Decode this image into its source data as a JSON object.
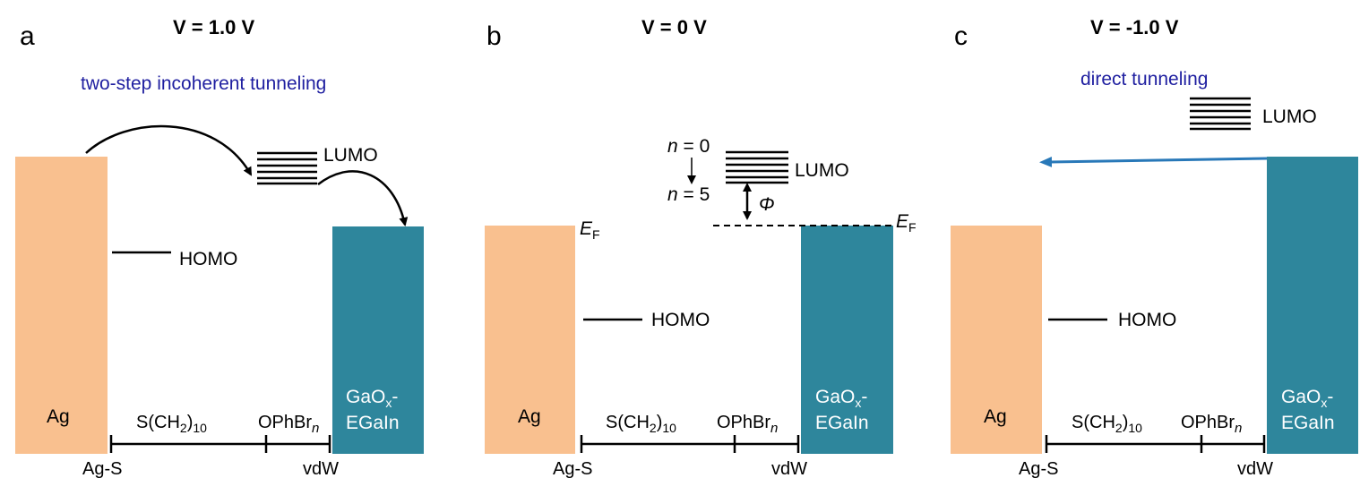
{
  "panels": [
    {
      "letter": "a",
      "voltage": "V = 1.0 V",
      "mechanism": "two-step incoherent tunneling",
      "lumo_label": "LUMO",
      "homo_label": "HOMO",
      "left_metal": "Ag",
      "right_metal_line1": "GaO",
      "right_metal_sub": "x",
      "right_metal_dash": "-",
      "right_metal_line2": "EGaIn",
      "seg1_main": "S(CH",
      "seg1_sub": "2",
      "seg1_close": ")",
      "seg1_sub2": "10",
      "seg2_main": "OPhBr",
      "seg2_italic": "n",
      "left_interface": "Ag-S",
      "right_interface": "vdW"
    },
    {
      "letter": "b",
      "voltage": "V = 0 V",
      "lumo_label": "LUMO",
      "homo_label": "HOMO",
      "n_top_var": "n",
      "n_top_val": " = 0",
      "n_bottom_var": "n",
      "n_bottom_val": " = 5",
      "phi": "Φ",
      "ef_main": "E",
      "ef_sub": "F",
      "left_metal": "Ag",
      "right_metal_line1": "GaO",
      "right_metal_sub": "x",
      "right_metal_dash": "-",
      "right_metal_line2": "EGaIn",
      "seg1_main": "S(CH",
      "seg1_sub": "2",
      "seg1_close": ")",
      "seg1_sub2": "10",
      "seg2_main": "OPhBr",
      "seg2_italic": "n",
      "left_interface": "Ag-S",
      "right_interface": "vdW"
    },
    {
      "letter": "c",
      "voltage": "V = -1.0 V",
      "mechanism": "direct tunneling",
      "lumo_label": "LUMO",
      "homo_label": "HOMO",
      "left_metal": "Ag",
      "right_metal_line1": "GaO",
      "right_metal_sub": "x",
      "right_metal_dash": "-",
      "right_metal_line2": "EGaIn",
      "seg1_main": "S(CH",
      "seg1_sub": "2",
      "seg1_close": ")",
      "seg1_sub2": "10",
      "seg2_main": "OPhBr",
      "seg2_italic": "n",
      "left_interface": "Ag-S",
      "right_interface": "vdW"
    }
  ],
  "colors": {
    "ag": "#f9c08f",
    "egain": "#2e869c",
    "mechanism_text": "#1f1fa0",
    "arrow_blue": "#2878b8"
  }
}
